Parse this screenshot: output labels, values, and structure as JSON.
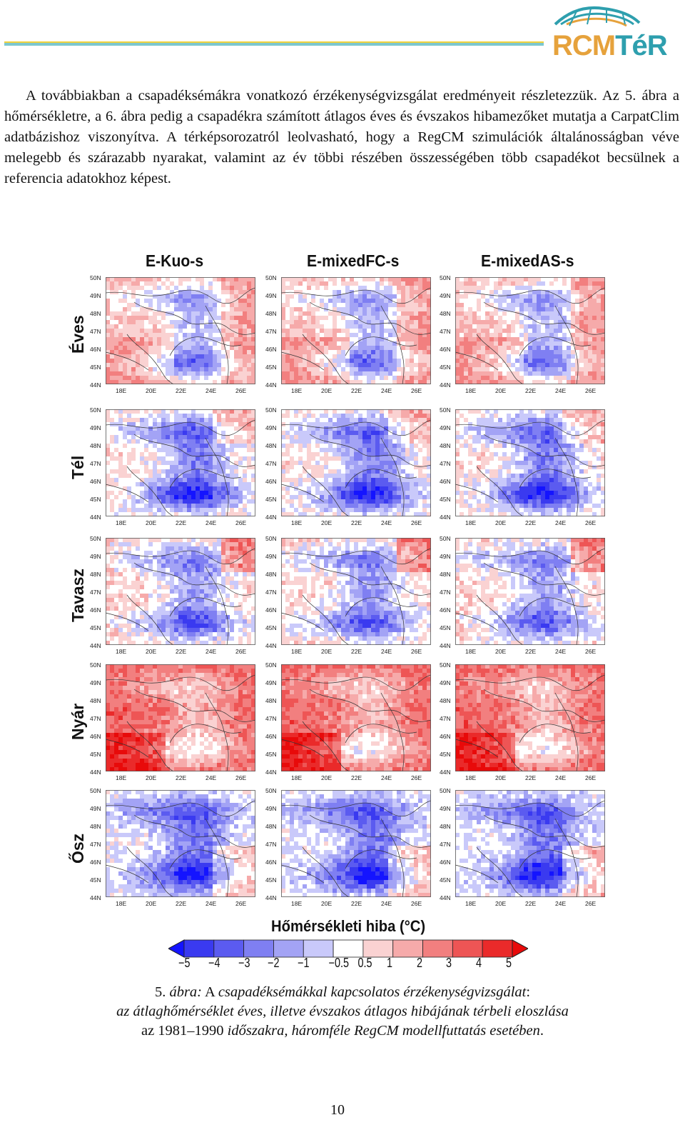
{
  "header": {
    "logo_text_a": "RCM",
    "logo_text_b": "TéR"
  },
  "body_text": "A továbbiakban a csapadéksémákra vonatkozó érzékenységvizsgálat eredményeit részletezzük. Az 5. ábra a hőmérsékletre, a 6. ábra pedig a csapadékra számított átlagos éves és évszakos hibamezőket mutatja a CarpatClim adatbázishoz viszonyítva. A térképsorozatról leolvasható, hogy a RegCM szimulációk általánosságban véve melegebb és szárazabb nyarakat, valamint az év többi részében összességében több csapadékot becsülnek a referencia adatokhoz képest.",
  "figure": {
    "columns": [
      "E-Kuo-s",
      "E-mixedFC-s",
      "E-mixedAS-s"
    ],
    "rows": [
      "Éves",
      "Tél",
      "Tavasz",
      "Nyár",
      "Ősz"
    ],
    "lat_ticks": [
      "50N",
      "49N",
      "48N",
      "47N",
      "46N",
      "45N",
      "44N"
    ],
    "lon_ticks": [
      "18E",
      "20E",
      "22E",
      "24E",
      "26E"
    ],
    "row_patterns": [
      "warm",
      "mixed_cool",
      "mixed",
      "hot",
      "cool"
    ],
    "colorbar": {
      "title": "Hőmérsékleti hiba (°C)",
      "labels": [
        "−5",
        "−4",
        "−3",
        "−2",
        "−1",
        "−0.5",
        "0.5",
        "1",
        "2",
        "3",
        "4",
        "5"
      ],
      "colors": [
        "#1414ff",
        "#3a3af0",
        "#5b5bf0",
        "#7f7ff2",
        "#a3a3f5",
        "#c9c9fa",
        "#ffffff",
        "#fad2d2",
        "#f6aaaa",
        "#f27f7f",
        "#ee5555",
        "#ea2a2a",
        "#e80a0a"
      ]
    }
  },
  "caption": {
    "line1_num": "5.",
    "line1_abra": "ábra:",
    "line1_a": "A",
    "line1_rest": "csapadéksémákkal kapcsolatos érzékenységvizsgálat",
    "line1_colon": ":",
    "line2": "az átlaghőmérséklet éves, illetve évszakos átlagos hibájának térbeli eloszlása",
    "line3_a": "az 1981–1990",
    "line3_b": "időszakra, háromféle RegCM modellfuttatás esetében",
    "line3_dot": "."
  },
  "page_number": "10"
}
